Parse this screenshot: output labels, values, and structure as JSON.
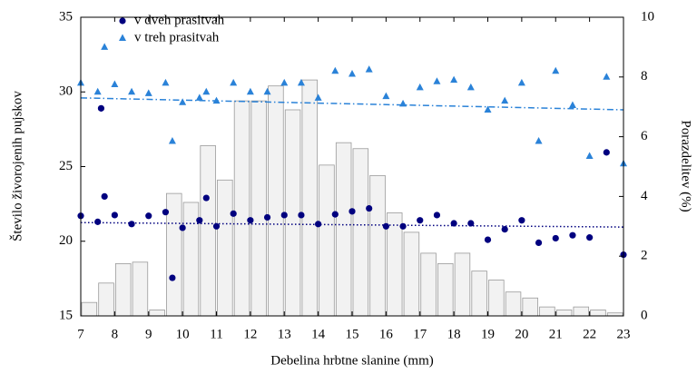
{
  "chart_data": {
    "type": "scatter",
    "xlabel": "Debelina hrbtne slanine (mm)",
    "ylabel": "Število živorojenih pujskov",
    "y2label": "Porazdelitev (%)",
    "xlim": [
      7,
      23
    ],
    "xticks": [
      7,
      8,
      9,
      10,
      11,
      12,
      13,
      14,
      15,
      16,
      17,
      18,
      19,
      20,
      21,
      22,
      23
    ],
    "ylim": [
      15,
      35
    ],
    "yticks": [
      15,
      20,
      25,
      30,
      35
    ],
    "y2lim": [
      0,
      10
    ],
    "y2ticks": [
      0,
      2,
      4,
      6,
      8,
      10
    ],
    "legend": "upper left",
    "histogram": {
      "axis": "y2",
      "color": "#f2f2f2",
      "edgecolor": "#9a9a9a",
      "bins": [
        7.0,
        7.5,
        8.0,
        8.5,
        9.0,
        9.5,
        10.0,
        10.5,
        11.0,
        11.5,
        12.0,
        12.5,
        13.0,
        13.5,
        14.0,
        14.5,
        15.0,
        15.5,
        16.0,
        16.5,
        17.0,
        17.5,
        18.0,
        18.5,
        19.0,
        19.5,
        20.0,
        20.5,
        21.0,
        21.5,
        22.0,
        22.5,
        23.0
      ],
      "counts": [
        0.45,
        1.1,
        1.75,
        1.8,
        0.2,
        4.1,
        3.8,
        5.7,
        4.55,
        7.2,
        7.2,
        7.7,
        6.9,
        7.9,
        5.05,
        5.8,
        5.6,
        4.7,
        3.45,
        2.8,
        2.1,
        1.75,
        2.1,
        1.5,
        1.2,
        0.8,
        0.6,
        0.3,
        0.2,
        0.3,
        0.2,
        0.1
      ]
    },
    "series": [
      {
        "name": "v dveh prasitvah",
        "color": "#00007f",
        "marker": "circle",
        "axis": "y",
        "x": [
          7.0,
          7.5,
          7.7,
          7.6,
          8.0,
          8.5,
          9.0,
          9.5,
          9.7,
          10.0,
          10.5,
          10.7,
          11.0,
          11.5,
          12.0,
          12.5,
          13.0,
          13.5,
          14.0,
          14.5,
          15.0,
          15.5,
          16.0,
          16.5,
          17.0,
          17.5,
          18.0,
          18.5,
          19.0,
          19.5,
          20.0,
          20.5,
          21.0,
          21.5,
          22.0,
          22.5,
          23.0
        ],
        "values": [
          21.7,
          21.3,
          23.0,
          28.9,
          21.75,
          21.15,
          21.7,
          21.95,
          17.55,
          20.9,
          21.4,
          22.9,
          21.0,
          21.85,
          21.4,
          21.6,
          21.75,
          21.75,
          21.15,
          21.8,
          22.0,
          22.2,
          21.0,
          21.0,
          21.4,
          21.75,
          21.2,
          21.2,
          20.1,
          20.8,
          21.4,
          19.9,
          20.2,
          20.4,
          20.25,
          25.95,
          19.1
        ]
      },
      {
        "name": "v treh prasitvah",
        "color": "#2a82d8",
        "marker": "triangle",
        "axis": "y2",
        "x": [
          7.0,
          7.5,
          7.7,
          8.0,
          8.5,
          9.0,
          9.5,
          9.7,
          10.0,
          10.5,
          10.7,
          11.0,
          11.5,
          12.0,
          12.5,
          13.0,
          13.5,
          14.0,
          14.5,
          15.0,
          15.5,
          16.0,
          16.5,
          17.0,
          17.5,
          18.0,
          18.5,
          19.0,
          19.5,
          20.0,
          20.5,
          21.0,
          21.5,
          22.0,
          22.5,
          23.0
        ],
        "values": [
          7.8,
          7.5,
          9.0,
          7.75,
          7.5,
          7.45,
          7.8,
          5.85,
          7.15,
          7.3,
          7.5,
          7.2,
          7.8,
          7.5,
          7.5,
          7.8,
          7.8,
          7.3,
          8.2,
          8.1,
          8.25,
          7.35,
          7.1,
          7.65,
          7.85,
          7.9,
          7.65,
          6.9,
          7.2,
          7.8,
          5.85,
          8.2,
          7.05,
          5.35,
          8.0,
          5.1
        ]
      }
    ],
    "trendlines": [
      {
        "axis": "y",
        "color": "#00007f",
        "dash": "1.5 2.5",
        "x": [
          7,
          23
        ],
        "values": [
          21.25,
          20.95
        ]
      },
      {
        "axis": "y2",
        "color": "#2a82d8",
        "dash": "7 3 1.5 3",
        "x": [
          7,
          23
        ],
        "values": [
          7.3,
          6.9
        ]
      }
    ]
  }
}
